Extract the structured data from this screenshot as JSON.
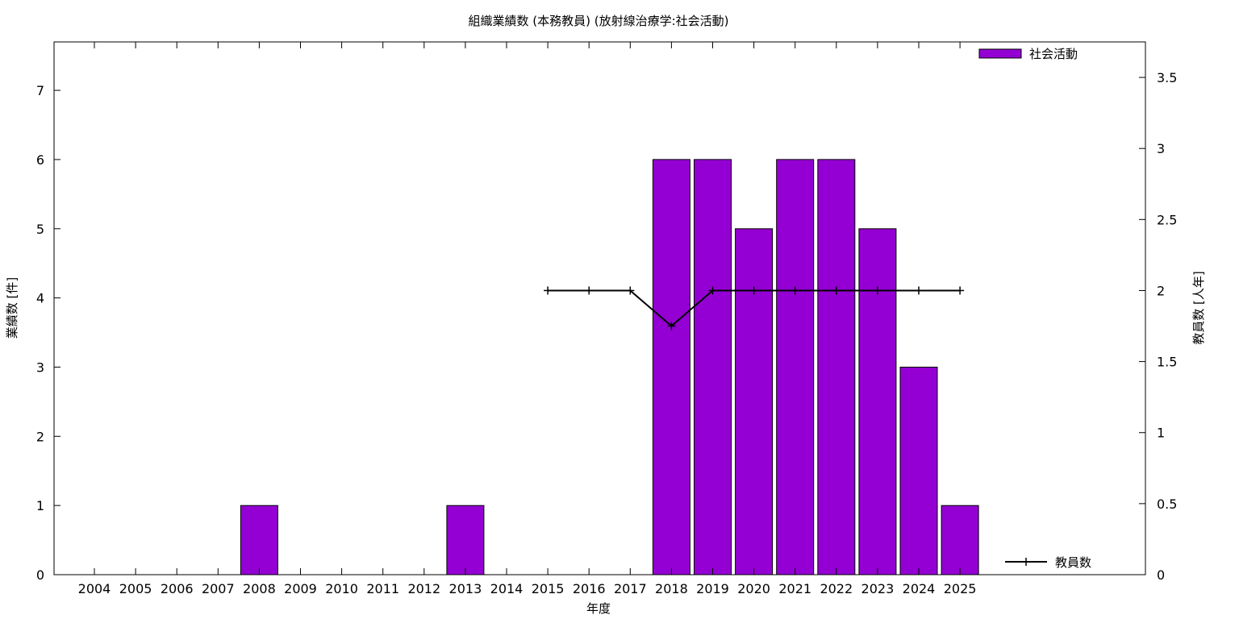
{
  "chart_data": {
    "type": "bar",
    "title": "組織業績数 (本務教員) (放射線治療学:社会活動)",
    "xlabel": "年度",
    "ylabel": "業績数 [件]",
    "y2label": "教員数 [人年]",
    "categories": [
      "2004",
      "2005",
      "2006",
      "2007",
      "2008",
      "2009",
      "2010",
      "2011",
      "2012",
      "2013",
      "2014",
      "2015",
      "2016",
      "2017",
      "2018",
      "2019",
      "2020",
      "2021",
      "2022",
      "2023",
      "2024",
      "2025"
    ],
    "ylim": [
      0,
      7.7
    ],
    "y2lim": [
      0,
      3.75
    ],
    "yticks": [
      0,
      1,
      2,
      3,
      4,
      5,
      6,
      7
    ],
    "y2ticks": [
      "0",
      "0.5",
      "1",
      "1.5",
      "2",
      "2.5",
      "3",
      "3.5"
    ],
    "grid": false,
    "legend_placement": "top-right, bottom-right",
    "bar_series": {
      "name": "社会活動",
      "color": "#9400d3",
      "values": [
        0,
        0,
        0,
        0,
        1,
        0,
        0,
        0,
        0,
        1,
        0,
        0,
        0,
        0,
        6,
        6,
        5,
        6,
        6,
        5,
        3,
        1
      ]
    },
    "line_series": {
      "name": "教員数",
      "color": "#000000",
      "axis": "right",
      "x": [
        "2015",
        "2016",
        "2017",
        "2018",
        "2019",
        "2020",
        "2021",
        "2022",
        "2023",
        "2024",
        "2025"
      ],
      "values": [
        2,
        2,
        2,
        1.75,
        2,
        2,
        2,
        2,
        2,
        2,
        2
      ]
    }
  }
}
